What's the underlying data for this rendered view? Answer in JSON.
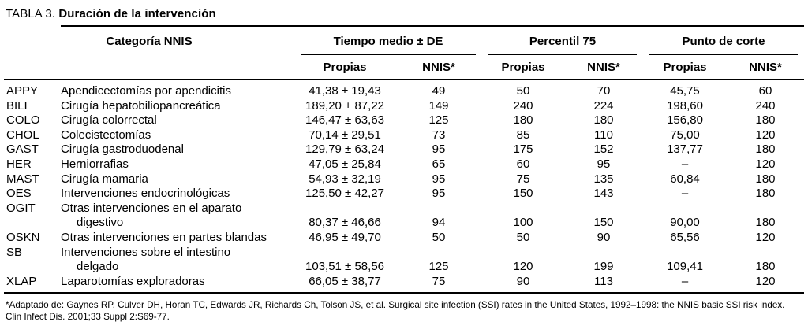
{
  "title": {
    "label": "TABLA 3.",
    "bold": "Duración de la intervención"
  },
  "table": {
    "col1_header": "Categoría NNIS",
    "groups": [
      {
        "label": "Tiempo medio ± DE"
      },
      {
        "label": "Percentil 75"
      },
      {
        "label": "Punto de corte"
      }
    ],
    "subheaders": [
      "Propias",
      "NNIS*",
      "Propias",
      "NNIS*",
      "Propias",
      "NNIS*"
    ],
    "rows": [
      {
        "code": "APPY",
        "desc": [
          "Apendicectomías por apendicitis"
        ],
        "values": [
          "41,38 ± 19,43",
          "49",
          "50",
          "70",
          "45,75",
          "60"
        ]
      },
      {
        "code": "BILI",
        "desc": [
          "Cirugía hepatobiliopancreática"
        ],
        "values": [
          "189,20 ± 87,22",
          "149",
          "240",
          "224",
          "198,60",
          "240"
        ]
      },
      {
        "code": "COLO",
        "desc": [
          "Cirugía colorrectal"
        ],
        "values": [
          "146,47 ± 63,63",
          "125",
          "180",
          "180",
          "156,80",
          "180"
        ]
      },
      {
        "code": "CHOL",
        "desc": [
          "Colecistectomías"
        ],
        "values": [
          "70,14 ± 29,51",
          "73",
          "85",
          "110",
          "75,00",
          "120"
        ]
      },
      {
        "code": "GAST",
        "desc": [
          "Cirugía gastroduodenal"
        ],
        "values": [
          "129,79 ± 63,24",
          "95",
          "175",
          "152",
          "137,77",
          "180"
        ]
      },
      {
        "code": "HER",
        "desc": [
          "Herniorrafias"
        ],
        "values": [
          "47,05 ± 25,84",
          "65",
          "60",
          "95",
          "–",
          "120"
        ]
      },
      {
        "code": "MAST",
        "desc": [
          "Cirugía mamaria"
        ],
        "values": [
          "54,93 ± 32,19",
          "95",
          "75",
          "135",
          "60,84",
          "180"
        ]
      },
      {
        "code": "OES",
        "desc": [
          "Intervenciones endocrinológicas"
        ],
        "values": [
          "125,50 ± 42,27",
          "95",
          "150",
          "143",
          "–",
          "180"
        ]
      },
      {
        "code": "OGIT",
        "desc": [
          "Otras intervenciones en el aparato",
          "digestivo"
        ],
        "values": [
          "80,37 ± 46,66",
          "94",
          "100",
          "150",
          "90,00",
          "180"
        ]
      },
      {
        "code": "OSKN",
        "desc": [
          "Otras intervenciones en partes blandas"
        ],
        "values": [
          "46,95 ± 49,70",
          "50",
          "50",
          "90",
          "65,56",
          "120"
        ]
      },
      {
        "code": "SB",
        "desc": [
          "Intervenciones sobre el intestino",
          "delgado"
        ],
        "values": [
          "103,51 ± 58,56",
          "125",
          "120",
          "199",
          "109,41",
          "180"
        ]
      },
      {
        "code": "XLAP",
        "desc": [
          "Laparotomías exploradoras"
        ],
        "values": [
          "66,05 ± 38,77",
          "75",
          "90",
          "113",
          "–",
          "120"
        ]
      }
    ]
  },
  "footnote": "*Adaptado de: Gaynes RP, Culver DH, Horan TC, Edwards JR, Richards Ch, Tolson JS, et al. Surgical site infection (SSI) rates in the United States, 1992–1998: the NNIS basic SSI risk index. Clin Infect Dis. 2001;33 Suppl 2:S69-77."
}
